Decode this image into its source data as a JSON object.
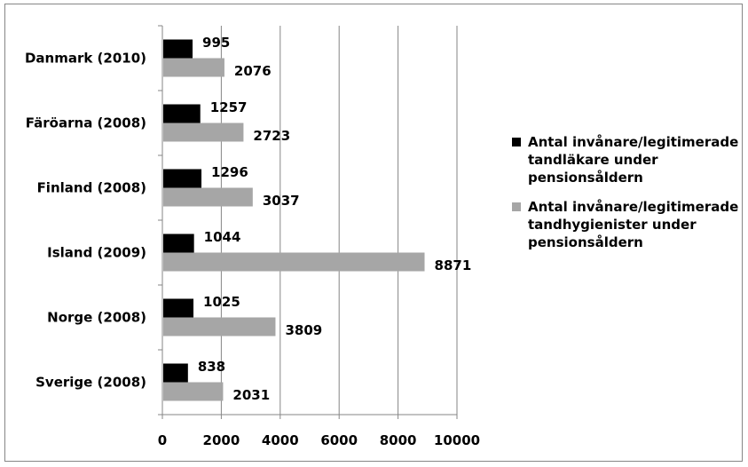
{
  "chart_data": {
    "type": "bar",
    "orientation": "horizontal",
    "categories": [
      "Danmark (2010)",
      "Färöarna (2008)",
      "Finland (2008)",
      "Island (2009)",
      "Norge (2008)",
      "Sverige (2008)"
    ],
    "series": [
      {
        "name": "Antal invånare/legitimerade tandläkare under pensionsåldern",
        "color": "#000000",
        "values": [
          995,
          1257,
          1296,
          1044,
          1025,
          838
        ]
      },
      {
        "name": "Antal invånare/legitimerade tandhygienister under pensionsåldern",
        "color": "#a6a6a6",
        "values": [
          2076,
          2723,
          3037,
          8871,
          3809,
          2031
        ]
      }
    ],
    "xlim": [
      0,
      10000
    ],
    "xticks": [
      0,
      2000,
      4000,
      6000,
      8000,
      10000
    ],
    "grid": true,
    "legend_position": "right"
  }
}
